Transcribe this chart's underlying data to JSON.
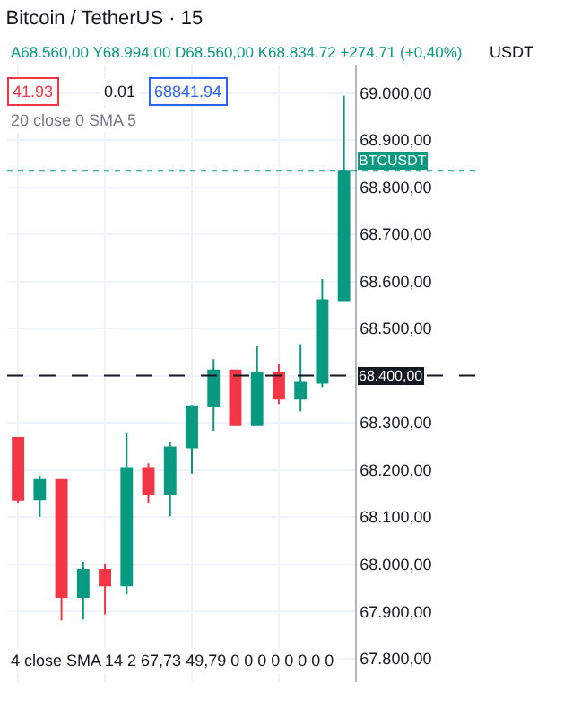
{
  "chart_data": {
    "type": "candlestick",
    "title": "Bitcoin / TetherUS · 15",
    "subtitle": "A68.560,00 Y68.994,00 D68.560,00 K68.834,72 +274,71 (+0,40%)",
    "ylabel": "USDT",
    "categories": [
      null,
      null,
      null,
      null,
      null,
      null,
      null,
      null,
      null,
      null,
      null,
      null,
      null,
      null,
      null,
      null
    ],
    "ohlc": [
      [
        68268,
        68270,
        68130,
        68137
      ],
      [
        68138,
        68188,
        68101,
        68179
      ],
      [
        68179,
        68179,
        67881,
        67931
      ],
      [
        67931,
        68005,
        67883,
        67988
      ],
      [
        67988,
        68002,
        67894,
        67955
      ],
      [
        67955,
        68278,
        67936,
        68204
      ],
      [
        68204,
        68214,
        68129,
        68148
      ],
      [
        68148,
        68260,
        68102,
        68248
      ],
      [
        68248,
        68338,
        68192,
        68335
      ],
      [
        68335,
        68435,
        68283,
        68411
      ],
      [
        68411,
        68413,
        68293,
        68295
      ],
      [
        68295,
        68462,
        68293,
        68407
      ],
      [
        68407,
        68424,
        68340,
        68351
      ],
      [
        68351,
        68467,
        68324,
        68385
      ],
      [
        68385,
        68605,
        68376,
        68560
      ],
      [
        68560,
        68994,
        68560,
        68834.72
      ]
    ],
    "colors": [
      "#f23645",
      "#089981",
      "#f23645",
      "#089981",
      "#f23645",
      "#089981",
      "#f23645",
      "#089981",
      "#089981",
      "#089981",
      "#f23645",
      "#089981",
      "#f23645",
      "#089981",
      "#089981",
      "#089981"
    ],
    "ylim": [
      67750,
      69060
    ],
    "yticks": [
      {
        "value": 67800,
        "label": "67.800,00"
      },
      {
        "value": 67900,
        "label": "67.900,00"
      },
      {
        "value": 68000,
        "label": "68.000,00"
      },
      {
        "value": 68100,
        "label": "68.100,00"
      },
      {
        "value": 68200,
        "label": "68.200,00"
      },
      {
        "value": 68300,
        "label": "68.300,00"
      },
      {
        "value": 68400,
        "label": null
      },
      {
        "value": 68500,
        "label": "68.500,00"
      },
      {
        "value": 68600,
        "label": "68.600,00"
      },
      {
        "value": 68700,
        "label": "68.700,00"
      },
      {
        "value": 68800,
        "label": "68.800,00"
      },
      {
        "value": 68900,
        "label": "68.900,00"
      },
      {
        "value": 69000,
        "label": "69.000,00"
      }
    ],
    "grid": true,
    "ref_lines": [
      {
        "axis": "y",
        "value": 68834.72,
        "label": "BTCUSDT",
        "color": "#089981",
        "line_style": "dotted"
      },
      {
        "axis": "y",
        "value": 68400,
        "label": "68.400,00",
        "color": "#131722",
        "line_style": "dashed"
      }
    ],
    "annotations": [
      "41.93",
      "0.01",
      "68841.94",
      "20 close 0 SMA 5",
      "4 close SMA 14 2 67,73 49,79 0 0 0 0 0 0 0 0"
    ]
  }
}
